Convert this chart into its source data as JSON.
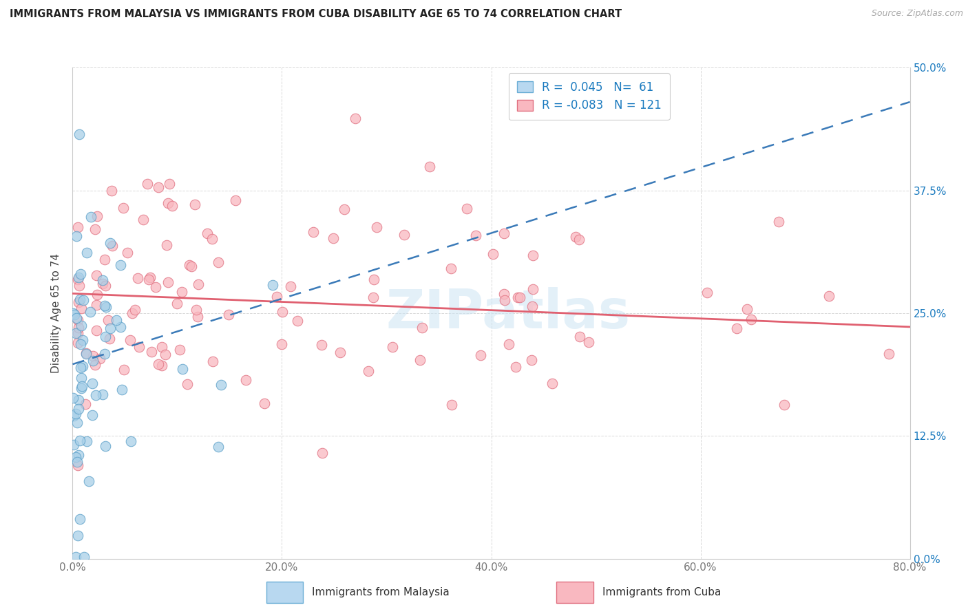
{
  "title": "IMMIGRANTS FROM MALAYSIA VS IMMIGRANTS FROM CUBA DISABILITY AGE 65 TO 74 CORRELATION CHART",
  "source": "Source: ZipAtlas.com",
  "ylabel": "Disability Age 65 to 74",
  "xlabel_ticks": [
    "0.0%",
    "20.0%",
    "40.0%",
    "60.0%",
    "80.0%"
  ],
  "xlabel_vals": [
    0.0,
    0.2,
    0.4,
    0.6,
    0.8
  ],
  "ylabel_ticks": [
    "0.0%",
    "12.5%",
    "25.0%",
    "37.5%",
    "50.0%"
  ],
  "ylabel_vals": [
    0.0,
    0.125,
    0.25,
    0.375,
    0.5
  ],
  "xlim": [
    0.0,
    0.8
  ],
  "ylim": [
    0.0,
    0.5
  ],
  "malaysia_R": 0.045,
  "malaysia_N": 61,
  "cuba_R": -0.083,
  "cuba_N": 121,
  "malaysia_color": "#a8cfe8",
  "malaysia_edge": "#5a9fc8",
  "cuba_color": "#f9b8c0",
  "cuba_edge": "#e07080",
  "malaysia_trend_color": "#3a7ab8",
  "cuba_trend_color": "#e06070",
  "watermark": "ZIPatlas",
  "legend_R_color": "#1a7abf",
  "malaysia_trend_start_y": 0.198,
  "malaysia_trend_end_y": 0.465,
  "cuba_trend_start_y": 0.27,
  "cuba_trend_end_y": 0.236,
  "background": "#ffffff",
  "grid_color": "#d8d8d8",
  "title_color": "#222222",
  "source_color": "#aaaaaa",
  "axis_tick_color": "#777777",
  "right_tick_color": "#1a7abf"
}
